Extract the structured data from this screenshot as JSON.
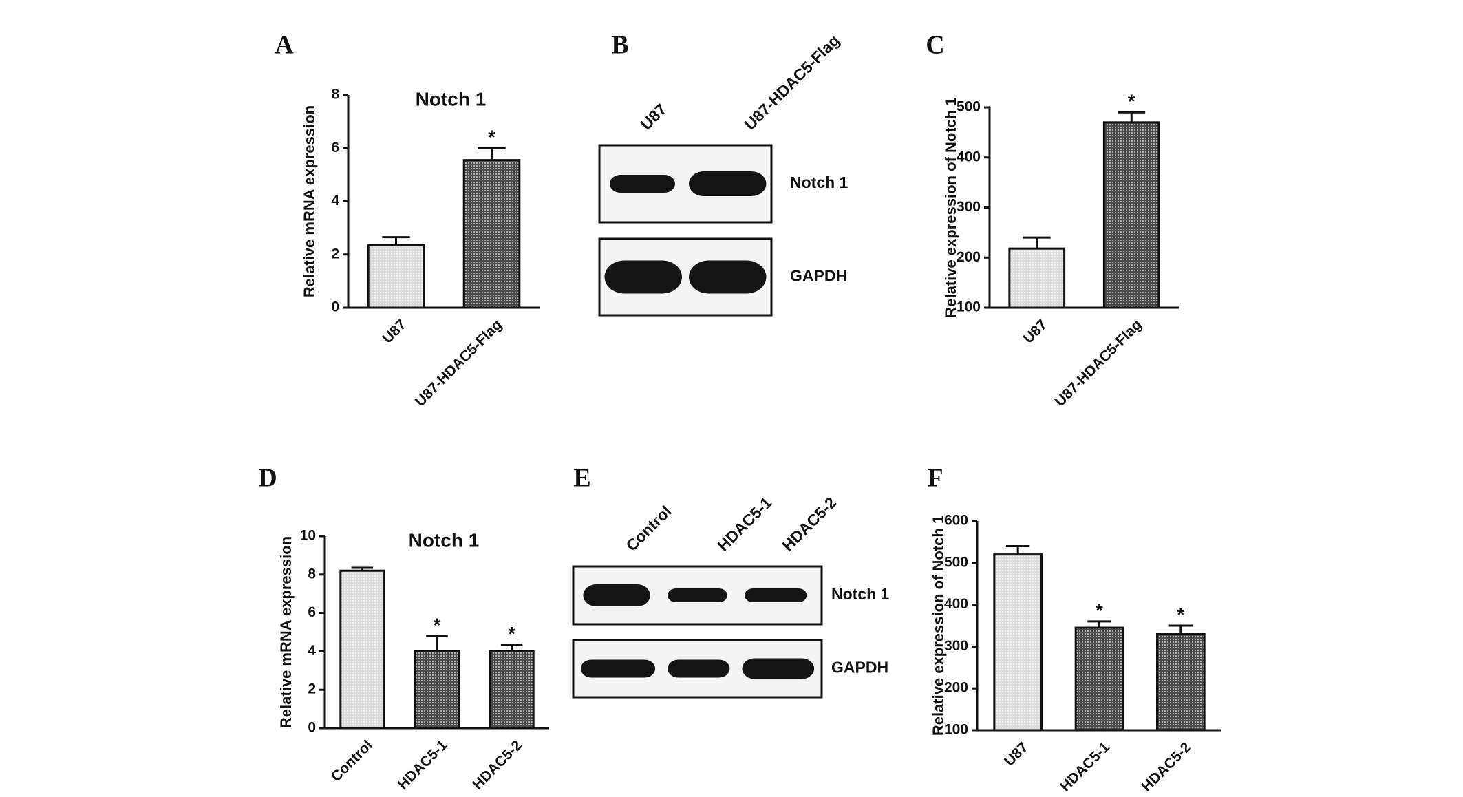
{
  "chart_data": [
    {
      "type": "bar",
      "label": "A",
      "title": "Notch 1",
      "ylabel": "Relative mRNA expression",
      "categories": [
        "U87",
        "U87-HDAC5-Flag"
      ],
      "values": [
        2.35,
        5.55
      ],
      "errors": [
        0.3,
        0.45
      ],
      "colors": [
        "#dcdcdc",
        "#4a4a4a"
      ],
      "annotations": [
        null,
        "*"
      ],
      "ylim": [
        0,
        8
      ],
      "yticks": [
        0,
        2,
        4,
        6,
        8
      ]
    },
    {
      "type": "bar",
      "label": "C",
      "ylabel": "Relative expression of Notch 1",
      "categories": [
        "U87",
        "U87-HDAC5-Flag"
      ],
      "values": [
        218,
        470
      ],
      "errors": [
        22,
        20
      ],
      "colors": [
        "#dcdcdc",
        "#4a4a4a"
      ],
      "annotations": [
        null,
        "*"
      ],
      "ylim": [
        100,
        500
      ],
      "yticks": [
        100,
        200,
        300,
        400,
        500
      ]
    },
    {
      "type": "bar",
      "label": "D",
      "title": "Notch 1",
      "ylabel": "Relative mRNA expression",
      "categories": [
        "Control",
        "HDAC5-1",
        "HDAC5-2"
      ],
      "values": [
        8.2,
        4.0,
        4.0
      ],
      "errors": [
        0.15,
        0.8,
        0.35
      ],
      "colors": [
        "#dcdcdc",
        "#4a4a4a",
        "#4a4a4a"
      ],
      "annotations": [
        null,
        "*",
        "*"
      ],
      "ylim": [
        0,
        10
      ],
      "yticks": [
        0,
        2,
        4,
        6,
        8,
        10
      ]
    },
    {
      "type": "bar",
      "label": "F",
      "ylabel": "Relative expression of Notch 1",
      "categories": [
        "U87",
        "HDAC5-1",
        "HDAC5-2"
      ],
      "values": [
        520,
        345,
        330
      ],
      "errors": [
        20,
        15,
        20
      ],
      "colors": [
        "#dcdcdc",
        "#4a4a4a",
        "#4a4a4a"
      ],
      "annotations": [
        null,
        "*",
        "*"
      ],
      "ylim": [
        100,
        600
      ],
      "yticks": [
        100,
        200,
        300,
        400,
        500,
        600
      ]
    }
  ],
  "blots": [
    {
      "label": "B",
      "lanes": [
        "U87",
        "U87-HDAC5-Flag"
      ],
      "rows": [
        "Notch 1",
        "GAPDH"
      ]
    },
    {
      "label": "E",
      "lanes": [
        "Control",
        "HDAC5-1",
        "HDAC5-2"
      ],
      "rows": [
        "Notch 1",
        "GAPDH"
      ]
    }
  ]
}
